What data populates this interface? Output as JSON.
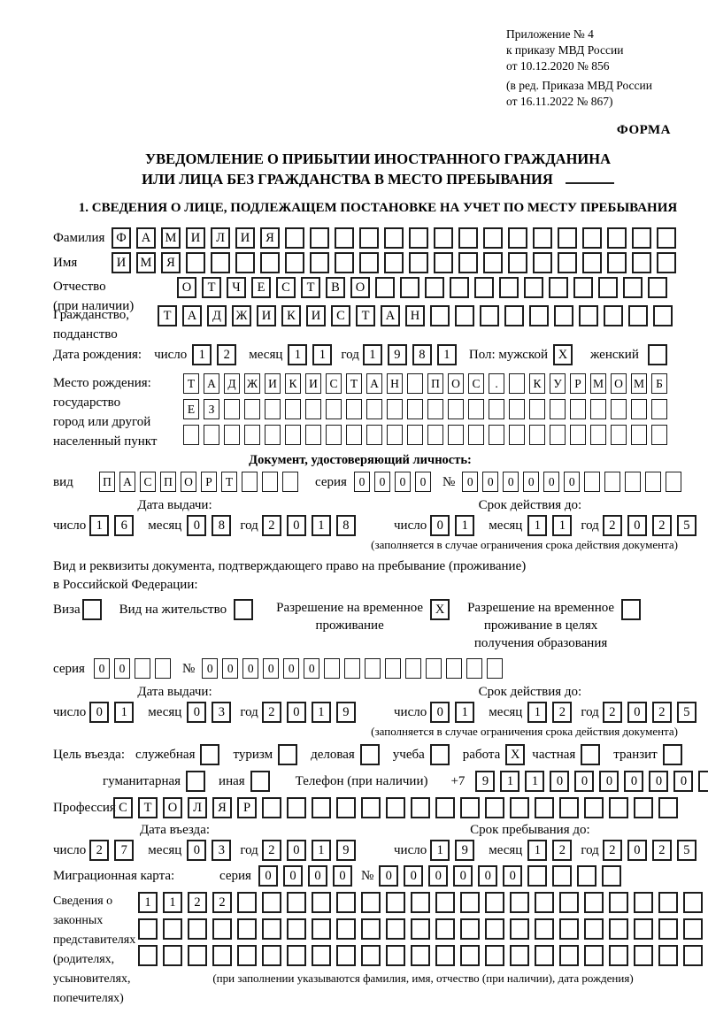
{
  "meta": {
    "appendix": [
      "Приложение № 4",
      "к приказу МВД России",
      "от 10.12.2020 № 856"
    ],
    "revision": [
      "(в ред. Приказа МВД России",
      "от 16.11.2022 № 867)"
    ],
    "forma": "ФОРМА"
  },
  "title": {
    "line1": "УВЕДОМЛЕНИЕ О ПРИБЫТИИ ИНОСТРАННОГО ГРАЖДАНИНА",
    "line2": "ИЛИ ЛИЦА БЕЗ ГРАЖДАНСТВА В МЕСТО ПРЕБЫВАНИЯ"
  },
  "section1": {
    "heading": "1. СВЕДЕНИЯ О ЛИЦЕ, ПОДЛЕЖАЩЕМ ПОСТАНОВКЕ НА УЧЕТ ПО МЕСТУ ПРЕБЫВАНИЯ"
  },
  "labels": {
    "lastname": "Фамилия",
    "firstname": "Имя",
    "patronymic1": "Отчество",
    "patronymic2": "(при наличии)",
    "citizenship1": "Гражданство,",
    "citizenship2": "подданство",
    "birthdate": "Дата рождения:",
    "day": "число",
    "month": "месяц",
    "year": "год",
    "sex_male": "Пол: мужской",
    "sex_female": "женский",
    "birthplace1": "Место рождения:",
    "birthplace2": "государство",
    "birthplace3": "город или другой",
    "birthplace4": "населенный пункт",
    "identity_header": "Документ, удостоверяющий личность:",
    "doc_type": "вид",
    "series": "серия",
    "number": "№",
    "issue_date": "Дата выдачи:",
    "valid_until": "Срок действия до:",
    "valid_note": "(заполняется в случае ограничения срока действия документа)",
    "permit_line1": "Вид и реквизиты документа, подтверждающего право на пребывание (проживание)",
    "permit_line2": "в Российской Федерации:",
    "visa": "Виза",
    "residence_permit": "Вид на жительство",
    "temp_permit1": "Разрешение на временное",
    "temp_permit2": "проживание",
    "temp_edu1": "Разрешение на временное",
    "temp_edu2": "проживание в целях",
    "temp_edu3": "получения образования",
    "purpose": "Цель въезда:",
    "p_official": "служебная",
    "p_tourism": "туризм",
    "p_business": "деловая",
    "p_study": "учеба",
    "p_work": "работа",
    "p_private": "частная",
    "p_transit": "транзит",
    "p_humanitarian": "гуманитарная",
    "p_other": "иная",
    "phone": "Телефон (при наличии)",
    "phone_prefix": "+7",
    "profession": "Профессия",
    "entry_date": "Дата въезда:",
    "stay_until": "Срок пребывания до:",
    "migration_card": "Миграционная карта:",
    "legal1": "Сведения о",
    "legal2": "законных",
    "legal3": "представителях",
    "legal4": "(родителях,",
    "legal5": "усыновителях,",
    "legal6": "попечителях)",
    "legal_note": "(при заполнении указываются фамилия, имя, отчество (при наличии), дата рождения)"
  },
  "fields": {
    "lastname": {
      "v": "ФАМИЛИЯ",
      "n": 23
    },
    "firstname": {
      "v": "ИМЯ",
      "n": 23
    },
    "patronymic": {
      "v": "ОТЧЕСТВО",
      "n": 20
    },
    "citizenship": {
      "v": "ТАДЖИКИСТАН",
      "n": 21
    },
    "birth_day": {
      "v": "12",
      "n": 2
    },
    "birth_month": {
      "v": "11",
      "n": 2
    },
    "birth_year": {
      "v": "1981",
      "n": 4
    },
    "sex_male": {
      "v": "X",
      "n": 1
    },
    "sex_female": {
      "v": "",
      "n": 1
    },
    "birthplace_row1": {
      "v": "ТАДЖИКИСТАН ПОС. КУРМОМБ",
      "n": 24
    },
    "birthplace_row2": {
      "v": "ЕЗ",
      "n": 24
    },
    "birthplace_row3": {
      "v": "",
      "n": 24
    },
    "doc_type": {
      "v": "ПАСПОРТ",
      "n": 10
    },
    "doc_series": {
      "v": "0000",
      "n": 4
    },
    "doc_number": {
      "v": "000000",
      "n": 11
    },
    "doc_issue_day": {
      "v": "16",
      "n": 2
    },
    "doc_issue_month": {
      "v": "08",
      "n": 2
    },
    "doc_issue_year": {
      "v": "2018",
      "n": 4
    },
    "doc_valid_day": {
      "v": "01",
      "n": 2
    },
    "doc_valid_month": {
      "v": "11",
      "n": 2
    },
    "doc_valid_year": {
      "v": "2025",
      "n": 4
    },
    "cb_visa": {
      "v": "",
      "n": 1
    },
    "cb_residence": {
      "v": "",
      "n": 1
    },
    "cb_temp": {
      "v": "X",
      "n": 1
    },
    "cb_temp_edu": {
      "v": "",
      "n": 1
    },
    "permit_series": {
      "v": "00",
      "n": 4
    },
    "permit_number": {
      "v": "000000",
      "n": 15
    },
    "permit_issue_day": {
      "v": "01",
      "n": 2
    },
    "permit_issue_month": {
      "v": "03",
      "n": 2
    },
    "permit_issue_year": {
      "v": "2019",
      "n": 4
    },
    "permit_valid_day": {
      "v": "01",
      "n": 2
    },
    "permit_valid_month": {
      "v": "12",
      "n": 2
    },
    "permit_valid_year": {
      "v": "2025",
      "n": 4
    },
    "cb_official": {
      "v": "",
      "n": 1
    },
    "cb_tourism": {
      "v": "",
      "n": 1
    },
    "cb_business": {
      "v": "",
      "n": 1
    },
    "cb_study": {
      "v": "",
      "n": 1
    },
    "cb_work": {
      "v": "X",
      "n": 1
    },
    "cb_private": {
      "v": "",
      "n": 1
    },
    "cb_transit": {
      "v": "",
      "n": 1
    },
    "cb_humanitarian": {
      "v": "",
      "n": 1
    },
    "cb_other": {
      "v": "",
      "n": 1
    },
    "phone": {
      "v": "911000000",
      "n": 10
    },
    "profession": {
      "v": "СТОЛЯР",
      "n": 23
    },
    "entry_day": {
      "v": "27",
      "n": 2
    },
    "entry_month": {
      "v": "03",
      "n": 2
    },
    "entry_year": {
      "v": "2019",
      "n": 4
    },
    "stay_day": {
      "v": "19",
      "n": 2
    },
    "stay_month": {
      "v": "12",
      "n": 2
    },
    "stay_year": {
      "v": "2025",
      "n": 4
    },
    "mig_series": {
      "v": "0000",
      "n": 4
    },
    "mig_number": {
      "v": "000000",
      "n": 10
    },
    "legal_row1": {
      "v": "1122",
      "n": 23
    },
    "legal_row2": {
      "v": "",
      "n": 23
    },
    "legal_row3": {
      "v": "",
      "n": 23
    }
  }
}
